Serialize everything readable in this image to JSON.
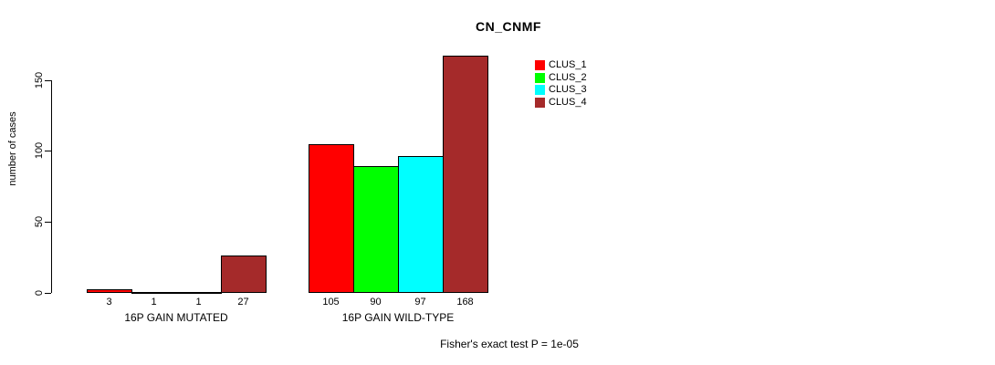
{
  "chart_data": {
    "type": "bar",
    "title": "CN_CNMF",
    "ylabel": "number of cases",
    "xlabel": "",
    "categories": [
      "16P GAIN MUTATED",
      "16P GAIN WILD-TYPE"
    ],
    "series": [
      {
        "name": "CLUS_1",
        "color": "#ff0000",
        "values": [
          3,
          105
        ]
      },
      {
        "name": "CLUS_2",
        "color": "#00ff00",
        "values": [
          1,
          90
        ]
      },
      {
        "name": "CLUS_3",
        "color": "#00ffff",
        "values": [
          1,
          97
        ]
      },
      {
        "name": "CLUS_4",
        "color": "#a52a2a",
        "values": [
          27,
          168
        ]
      }
    ],
    "yticks": [
      0,
      50,
      100,
      150
    ],
    "ylim": [
      0,
      150
    ],
    "grid": false,
    "legend_position": "top-right-inside",
    "bar_value_labels": [
      [
        "3",
        "1",
        "1",
        "27"
      ],
      [
        "105",
        "90",
        "97",
        "168"
      ]
    ],
    "annotation": "Fisher's exact test P = 1e-05"
  }
}
